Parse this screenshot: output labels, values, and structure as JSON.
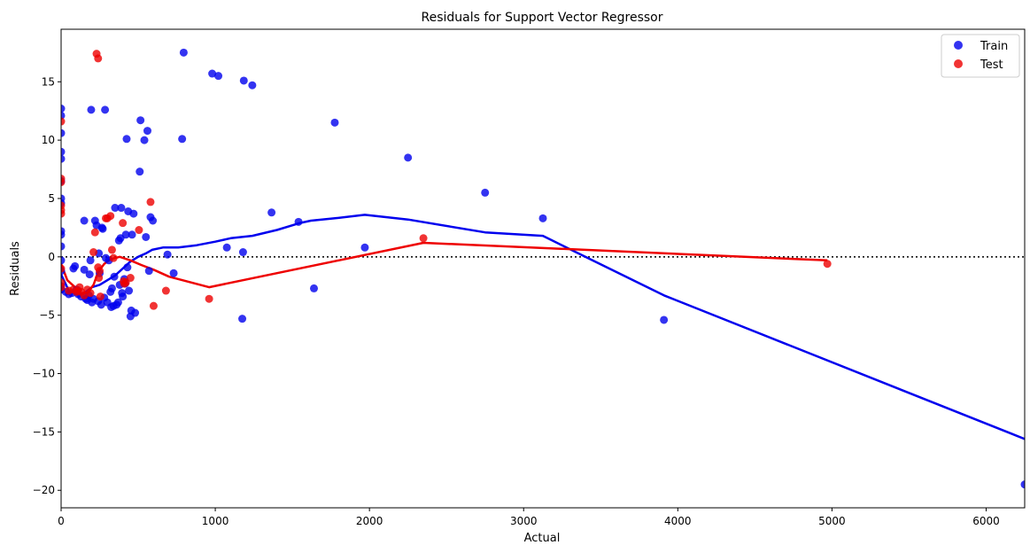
{
  "chart_data": {
    "type": "scatter",
    "title": "Residuals for Support Vector Regressor",
    "xlabel": "Actual",
    "ylabel": "Residuals",
    "xlim": [
      0,
      6250
    ],
    "ylim": [
      -21.5,
      19.5
    ],
    "xticks": [
      0,
      1000,
      2000,
      3000,
      4000,
      5000,
      6000
    ],
    "xtick_labels": [
      "0",
      "1000",
      "2000",
      "3000",
      "4000",
      "5000",
      "6000"
    ],
    "yticks": [
      -20,
      -15,
      -10,
      -5,
      0,
      5,
      10,
      15
    ],
    "ytick_labels": [
      "−20",
      "−15",
      "−10",
      "−5",
      "0",
      "5",
      "10",
      "15"
    ],
    "reference_line": {
      "y": 0,
      "style": "dotted",
      "color": "#000000"
    },
    "legend": {
      "position": "top-right"
    },
    "series": [
      {
        "name": "Train",
        "color": "#0000ee",
        "kind": "scatter",
        "points": [
          [
            0,
            12.7
          ],
          [
            0,
            12.1
          ],
          [
            0,
            10.6
          ],
          [
            0,
            9.0
          ],
          [
            0,
            8.4
          ],
          [
            0,
            6.5
          ],
          [
            0,
            5.0
          ],
          [
            0,
            4.6
          ],
          [
            0,
            2.2
          ],
          [
            0,
            1.9
          ],
          [
            0,
            0.9
          ],
          [
            0,
            -0.3
          ],
          [
            0,
            -1.2
          ],
          [
            0,
            -2.5
          ],
          [
            0,
            -2.8
          ],
          [
            30,
            -3.0
          ],
          [
            50,
            -3.2
          ],
          [
            70,
            -3.1
          ],
          [
            80,
            -1.0
          ],
          [
            90,
            -0.8
          ],
          [
            100,
            -2.8
          ],
          [
            110,
            -3.2
          ],
          [
            130,
            -3.4
          ],
          [
            150,
            -1.1
          ],
          [
            150,
            3.1
          ],
          [
            160,
            -3.6
          ],
          [
            170,
            -3.7
          ],
          [
            180,
            -3.3
          ],
          [
            185,
            -1.5
          ],
          [
            190,
            -0.3
          ],
          [
            195,
            12.6
          ],
          [
            200,
            -3.9
          ],
          [
            210,
            -3.6
          ],
          [
            220,
            3.1
          ],
          [
            230,
            2.7
          ],
          [
            240,
            -3.8
          ],
          [
            245,
            0.3
          ],
          [
            250,
            -1.4
          ],
          [
            260,
            -4.1
          ],
          [
            265,
            2.5
          ],
          [
            270,
            2.4
          ],
          [
            280,
            -3.5
          ],
          [
            285,
            12.6
          ],
          [
            290,
            -0.1
          ],
          [
            300,
            -3.9
          ],
          [
            310,
            -0.3
          ],
          [
            320,
            -3.0
          ],
          [
            325,
            -4.3
          ],
          [
            330,
            -2.7
          ],
          [
            340,
            -4.2
          ],
          [
            345,
            -1.7
          ],
          [
            350,
            4.2
          ],
          [
            360,
            -4.1
          ],
          [
            370,
            -3.9
          ],
          [
            375,
            1.4
          ],
          [
            380,
            -2.4
          ],
          [
            385,
            1.6
          ],
          [
            390,
            4.2
          ],
          [
            395,
            -3.1
          ],
          [
            400,
            -3.4
          ],
          [
            410,
            -1.9
          ],
          [
            415,
            -2.3
          ],
          [
            420,
            1.9
          ],
          [
            425,
            10.1
          ],
          [
            430,
            -0.9
          ],
          [
            435,
            3.9
          ],
          [
            440,
            -2.9
          ],
          [
            450,
            -5.1
          ],
          [
            455,
            -4.6
          ],
          [
            460,
            1.9
          ],
          [
            470,
            3.7
          ],
          [
            480,
            -4.8
          ],
          [
            510,
            7.3
          ],
          [
            515,
            11.7
          ],
          [
            540,
            10.0
          ],
          [
            550,
            1.7
          ],
          [
            560,
            10.8
          ],
          [
            570,
            -1.2
          ],
          [
            580,
            3.4
          ],
          [
            595,
            3.1
          ],
          [
            690,
            0.2
          ],
          [
            730,
            -1.4
          ],
          [
            785,
            10.1
          ],
          [
            795,
            17.5
          ],
          [
            980,
            15.7
          ],
          [
            1020,
            15.5
          ],
          [
            1075,
            0.8
          ],
          [
            1175,
            -5.3
          ],
          [
            1180,
            0.4
          ],
          [
            1185,
            15.1
          ],
          [
            1240,
            14.7
          ],
          [
            1365,
            3.8
          ],
          [
            1540,
            3.0
          ],
          [
            1640,
            -2.7
          ],
          [
            1775,
            11.5
          ],
          [
            1970,
            0.8
          ],
          [
            2250,
            8.5
          ],
          [
            2750,
            5.5
          ],
          [
            3125,
            3.3
          ],
          [
            3910,
            -5.4
          ],
          [
            6250,
            -19.5
          ]
        ]
      },
      {
        "name": "Test",
        "color": "#ee0000",
        "kind": "scatter",
        "points": [
          [
            0,
            11.6
          ],
          [
            0,
            6.7
          ],
          [
            0,
            6.4
          ],
          [
            0,
            4.4
          ],
          [
            0,
            4.0
          ],
          [
            0,
            3.7
          ],
          [
            0,
            -1.0
          ],
          [
            0,
            -2.2
          ],
          [
            0,
            -2.6
          ],
          [
            50,
            -2.9
          ],
          [
            80,
            -2.8
          ],
          [
            100,
            -3.0
          ],
          [
            110,
            -2.9
          ],
          [
            120,
            -2.6
          ],
          [
            130,
            -3.0
          ],
          [
            150,
            -3.3
          ],
          [
            170,
            -2.8
          ],
          [
            190,
            -3.1
          ],
          [
            210,
            0.4
          ],
          [
            220,
            2.1
          ],
          [
            230,
            17.4
          ],
          [
            240,
            17.0
          ],
          [
            240,
            -0.9
          ],
          [
            245,
            -1.8
          ],
          [
            250,
            -1.2
          ],
          [
            255,
            -3.4
          ],
          [
            290,
            3.3
          ],
          [
            300,
            3.3
          ],
          [
            320,
            3.5
          ],
          [
            330,
            0.6
          ],
          [
            340,
            -0.1
          ],
          [
            400,
            2.9
          ],
          [
            405,
            -2.1
          ],
          [
            410,
            -2.3
          ],
          [
            420,
            -2.2
          ],
          [
            450,
            -1.8
          ],
          [
            505,
            2.3
          ],
          [
            580,
            4.7
          ],
          [
            600,
            -4.2
          ],
          [
            680,
            -2.9
          ],
          [
            960,
            -3.6
          ],
          [
            2350,
            1.6
          ],
          [
            4970,
            -0.6
          ]
        ]
      }
    ],
    "lowess": [
      {
        "series": "Train",
        "color": "#0000ee",
        "points": [
          [
            0,
            -1.5
          ],
          [
            50,
            -2.9
          ],
          [
            100,
            -3.2
          ],
          [
            150,
            -3.1
          ],
          [
            200,
            -2.6
          ],
          [
            250,
            -2.4
          ],
          [
            300,
            -2.0
          ],
          [
            350,
            -1.6
          ],
          [
            400,
            -1.0
          ],
          [
            450,
            -0.4
          ],
          [
            500,
            0.0
          ],
          [
            550,
            0.3
          ],
          [
            590,
            0.6
          ],
          [
            660,
            0.8
          ],
          [
            760,
            0.8
          ],
          [
            880,
            1.0
          ],
          [
            1000,
            1.3
          ],
          [
            1100,
            1.6
          ],
          [
            1240,
            1.8
          ],
          [
            1400,
            2.3
          ],
          [
            1550,
            2.9
          ],
          [
            1620,
            3.1
          ],
          [
            1770,
            3.3
          ],
          [
            1970,
            3.6
          ],
          [
            2250,
            3.2
          ],
          [
            2750,
            2.1
          ],
          [
            3125,
            1.8
          ],
          [
            3400,
            0.0
          ],
          [
            3910,
            -3.3
          ],
          [
            6250,
            -15.6
          ]
        ]
      },
      {
        "series": "Test",
        "color": "#ee0000",
        "points": [
          [
            0,
            -0.6
          ],
          [
            40,
            -2.0
          ],
          [
            90,
            -2.6
          ],
          [
            130,
            -3.2
          ],
          [
            170,
            -3.1
          ],
          [
            210,
            -2.4
          ],
          [
            240,
            -1.3
          ],
          [
            280,
            -0.6
          ],
          [
            320,
            -0.2
          ],
          [
            380,
            0.0
          ],
          [
            450,
            -0.3
          ],
          [
            520,
            -0.7
          ],
          [
            600,
            -1.1
          ],
          [
            700,
            -1.7
          ],
          [
            960,
            -2.6
          ],
          [
            2350,
            1.2
          ],
          [
            4970,
            -0.3
          ]
        ]
      }
    ]
  }
}
